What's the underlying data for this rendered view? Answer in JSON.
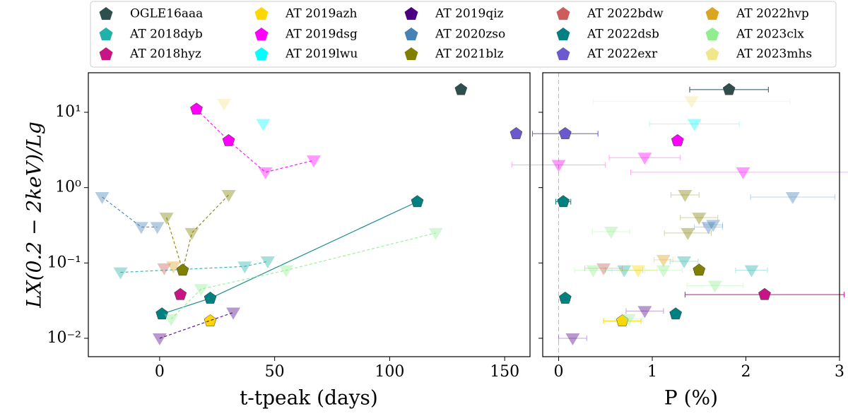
{
  "chart_data": [
    {
      "type": "scatter",
      "xlabel": "t-tpeak (days)",
      "ylabel": "LX(0.2 − 2keV)/Lg",
      "log_y": true,
      "legend": "top",
      "xlim": [
        -31,
        161
      ],
      "ylim": [
        0.0057,
        33.5
      ],
      "xticks": [
        0,
        50,
        100,
        150
      ],
      "yticks": [
        {
          "value": 0.01,
          "label": "10⁻²"
        },
        {
          "value": 0.1,
          "label": "10⁻¹"
        },
        {
          "value": 1,
          "label": "10⁰"
        },
        {
          "value": 10,
          "label": "10¹"
        }
      ],
      "series": [
        {
          "name": "OGLE16aaa",
          "color": "#2f4f4f",
          "linestyle": "dashed",
          "x": [
            131
          ],
          "values": [
            20
          ],
          "upper_limit": [
            false
          ]
        },
        {
          "name": "AT 2018dyb",
          "color": "#20b2aa",
          "linestyle": "dashed",
          "x": [
            -17,
            37,
            47
          ],
          "values": [
            0.075,
            0.09,
            0.105
          ],
          "upper_limit": [
            true,
            true,
            true
          ]
        },
        {
          "name": "AT 2018hyz",
          "color": "#c71585",
          "linestyle": "dashed",
          "x": [
            9
          ],
          "values": [
            0.038
          ],
          "upper_limit": [
            false
          ]
        },
        {
          "name": "AT 2019azh",
          "color": "#ffd700",
          "linestyle": "dashed",
          "x": [
            22
          ],
          "values": [
            0.017
          ],
          "upper_limit": [
            false
          ]
        },
        {
          "name": "AT 2019dsg",
          "color": "#ff00ff",
          "linestyle": "dashed",
          "x": [
            16,
            30,
            46,
            67
          ],
          "values": [
            11,
            4.2,
            1.6,
            2.3
          ],
          "upper_limit": [
            false,
            false,
            true,
            true
          ]
        },
        {
          "name": "AT 2019lwu",
          "color": "#00ffff",
          "linestyle": "dashed",
          "x": [
            45
          ],
          "values": [
            7
          ],
          "upper_limit": [
            true
          ]
        },
        {
          "name": "AT 2019qiz",
          "color": "#4b0082",
          "linestyle": "dashed",
          "x": [
            0,
            32
          ],
          "values": [
            0.01,
            0.022
          ],
          "upper_limit": [
            true,
            true
          ]
        },
        {
          "name": "AT 2020zso",
          "color": "#4682b4",
          "linestyle": "dashed",
          "x": [
            -25,
            -8,
            -1
          ],
          "values": [
            0.75,
            0.3,
            0.3
          ],
          "upper_limit": [
            true,
            true,
            true
          ]
        },
        {
          "name": "AT 2021blz",
          "color": "#808000",
          "linestyle": "dashed",
          "x": [
            3,
            10,
            14,
            30
          ],
          "values": [
            0.4,
            0.08,
            0.25,
            0.8
          ],
          "upper_limit": [
            true,
            false,
            true,
            true
          ]
        },
        {
          "name": "AT 2022bdw",
          "color": "#cd5c5c",
          "linestyle": "dashed",
          "x": [
            2
          ],
          "values": [
            0.085
          ],
          "upper_limit": [
            true
          ]
        },
        {
          "name": "AT 2022dsb",
          "color": "#008080",
          "linestyle": "solid",
          "x": [
            1,
            22,
            112
          ],
          "values": [
            0.021,
            0.034,
            0.65
          ],
          "upper_limit": [
            false,
            false,
            false
          ]
        },
        {
          "name": "AT 2022exr",
          "color": "#6a5acd",
          "linestyle": "dashed",
          "x": [
            155
          ],
          "values": [
            5.2
          ],
          "upper_limit": [
            false
          ]
        },
        {
          "name": "AT 2022hvp",
          "color": "#daa520",
          "linestyle": "dashed",
          "x": [
            6
          ],
          "values": [
            0.09
          ],
          "upper_limit": [
            true
          ]
        },
        {
          "name": "AT 2023clx",
          "color": "#90ee90",
          "linestyle": "dashed",
          "x": [
            5,
            18,
            55,
            120
          ],
          "values": [
            0.018,
            0.045,
            0.08,
            0.25
          ],
          "upper_limit": [
            true,
            true,
            true,
            true
          ]
        },
        {
          "name": "AT 2023mhs",
          "color": "#f0e68c",
          "linestyle": "dashed",
          "x": [
            28
          ],
          "values": [
            13
          ],
          "upper_limit": [
            true
          ]
        }
      ]
    },
    {
      "type": "scatter",
      "xlabel": "P (%)",
      "log_y": true,
      "vline": 0,
      "xlim": [
        -0.17,
        3
      ],
      "ylim": [
        0.0057,
        33.5
      ],
      "xticks": [
        0,
        1,
        2,
        3
      ],
      "series": [
        {
          "color": "#2f4f4f",
          "x": [
            1.82
          ],
          "xerr": [
            0.42
          ],
          "values": [
            20
          ],
          "upper_limit": [
            false
          ]
        },
        {
          "color": "#20b2aa",
          "x": [
            1.34,
            2.06,
            0.7
          ],
          "xerr": [
            0.15,
            0.17,
            0.2
          ],
          "values": [
            0.105,
            0.08,
            0.08
          ],
          "upper_limit": [
            true,
            true,
            true
          ]
        },
        {
          "color": "#c71585",
          "x": [
            2.2
          ],
          "xerr": [
            0.85
          ],
          "values": [
            0.038
          ],
          "upper_limit": [
            false
          ]
        },
        {
          "color": "#ffd700",
          "x": [
            0.68,
            0.85
          ],
          "xerr": [
            0.2,
            0.2
          ],
          "values": [
            0.017,
            0.08
          ],
          "upper_limit": [
            false,
            true
          ]
        },
        {
          "color": "#ff00ff",
          "x": [
            1.27,
            0.92,
            1.97,
            0.0
          ],
          "xerr": [
            0.05,
            0.38,
            1.2,
            0.5
          ],
          "values": [
            4.2,
            2.5,
            1.6,
            2.0
          ],
          "upper_limit": [
            false,
            true,
            true,
            true
          ]
        },
        {
          "color": "#00ffff",
          "x": [
            1.45
          ],
          "xerr": [
            0.48
          ],
          "values": [
            7
          ],
          "upper_limit": [
            true
          ]
        },
        {
          "color": "#4b0082",
          "x": [
            0.92,
            0.15
          ],
          "xerr": [
            0.2,
            0.15
          ],
          "values": [
            0.023,
            0.01
          ],
          "upper_limit": [
            true,
            true
          ]
        },
        {
          "color": "#4682b4",
          "x": [
            2.5,
            1.6,
            1.65
          ],
          "xerr": [
            0.45,
            0.15,
            0.1
          ],
          "values": [
            0.75,
            0.3,
            0.32
          ],
          "upper_limit": [
            true,
            true,
            true
          ]
        },
        {
          "color": "#808000",
          "x": [
            1.35,
            1.5,
            1.38,
            1.5
          ],
          "xerr": [
            0.15,
            0.2,
            0.25,
            0.05
          ],
          "values": [
            0.8,
            0.4,
            0.25,
            0.08
          ],
          "upper_limit": [
            true,
            true,
            true,
            false
          ]
        },
        {
          "color": "#cd5c5c",
          "x": [
            0.48
          ],
          "xerr": [
            0.2
          ],
          "values": [
            0.085
          ],
          "upper_limit": [
            true
          ]
        },
        {
          "color": "#008080",
          "x": [
            0.05,
            0.07,
            1.25
          ],
          "xerr": [
            0.08,
            0.05,
            0.04
          ],
          "values": [
            0.65,
            0.034,
            0.021
          ],
          "upper_limit": [
            false,
            false,
            false
          ]
        },
        {
          "color": "#6a5acd",
          "x": [
            0.07
          ],
          "xerr": [
            0.35
          ],
          "values": [
            5.2
          ],
          "upper_limit": [
            false
          ]
        },
        {
          "color": "#daa520",
          "x": [
            1.12
          ],
          "xerr": [
            0.1
          ],
          "values": [
            0.11
          ],
          "upper_limit": [
            true
          ]
        },
        {
          "color": "#90ee90",
          "x": [
            0.56,
            0.37,
            1.12,
            1.67,
            0.75
          ],
          "xerr": [
            0.2,
            0.2,
            0.2,
            0.3,
            0.15
          ],
          "values": [
            0.26,
            0.08,
            0.08,
            0.05,
            0.018
          ],
          "upper_limit": [
            true,
            true,
            true,
            true,
            true
          ]
        },
        {
          "color": "#f0e68c",
          "x": [
            1.42
          ],
          "xerr": [
            1.05
          ],
          "values": [
            14
          ],
          "upper_limit": [
            true
          ]
        }
      ]
    }
  ]
}
